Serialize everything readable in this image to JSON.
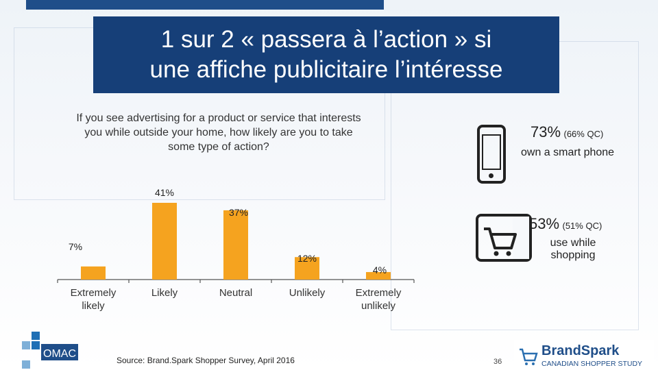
{
  "title": {
    "line1": "1 sur 2 « passera  à l’action » si",
    "line2": "une affiche publicitaire l’intéresse"
  },
  "question": "If you see advertising for a product or service that interests you while outside your home, how likely are you to take some type of action?",
  "chart_data": {
    "type": "bar",
    "categories": [
      "Extremely likely",
      "Likely",
      "Neutral",
      "Unlikely",
      "Extremely unlikely"
    ],
    "values": [
      7,
      41,
      37,
      12,
      4
    ],
    "labels": [
      "7%",
      "41%",
      "37%",
      "12%",
      "4%"
    ],
    "ylim": [
      0,
      45
    ],
    "bar_color": "#f5a31f",
    "grid": false
  },
  "stats": {
    "smartphone": {
      "pct": "73%",
      "qc": "(66% QC)",
      "text": "own a smart phone"
    },
    "shopping": {
      "pct": "53%",
      "qc": "(51% QC)",
      "text_line1": "use while",
      "text_line2": "shopping"
    }
  },
  "footer": {
    "source": "Source: Brand.Spark Shopper Survey, April 2016",
    "page": "36",
    "omac_logo": "OMAC",
    "brandspark_logo": "BrandSpark",
    "brandspark_tagline": "CANADIAN SHOPPER STUDY"
  },
  "colors": {
    "title_bg": "#163f78",
    "accent_blue": "#1f4e89",
    "bar": "#f5a31f"
  }
}
